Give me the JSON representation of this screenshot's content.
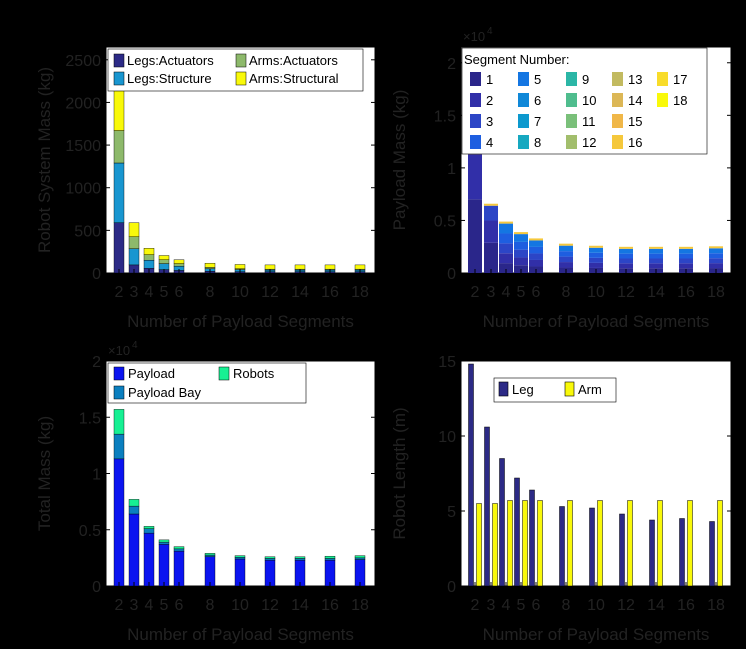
{
  "chart_data": [
    {
      "type": "bar",
      "stacked": true,
      "xlabel": "Number of Payload Segments",
      "ylabel": "Robot System Mass (kg)",
      "x": [
        2,
        3,
        4,
        5,
        6,
        8,
        10,
        12,
        14,
        16,
        18
      ],
      "ylim": [
        0,
        2650
      ],
      "yticks": [
        0,
        500,
        1000,
        1500,
        2000,
        2500
      ],
      "yticklabels": [
        "0",
        "500",
        "1000",
        "1500",
        "2000",
        "2500"
      ],
      "legend": {
        "position": "top",
        "columns": 2
      },
      "series": [
        {
          "name": "Legs:Actuators",
          "color": "#2c2a86",
          "values": [
            590,
            95,
            55,
            40,
            30,
            20,
            15,
            15,
            15,
            15,
            15
          ]
        },
        {
          "name": "Legs:Structure",
          "color": "#1996d0",
          "values": [
            700,
            190,
            95,
            70,
            50,
            30,
            25,
            20,
            20,
            20,
            20
          ]
        },
        {
          "name": "Arms:Actuators",
          "color": "#8db96b",
          "values": [
            380,
            140,
            65,
            45,
            30,
            15,
            10,
            10,
            10,
            10,
            10
          ]
        },
        {
          "name": "Arms:Structural",
          "color": "#f9f90a",
          "values": [
            490,
            165,
            75,
            50,
            45,
            50,
            50,
            50,
            50,
            50,
            50
          ]
        }
      ]
    },
    {
      "type": "bar",
      "stacked": true,
      "xlabel": "Number of Payload Segments",
      "ylabel": "Payload Mass (kg)",
      "exponent_label": "×10",
      "exponent_power": "4",
      "x": [
        2,
        3,
        4,
        5,
        6,
        8,
        10,
        12,
        14,
        16,
        18
      ],
      "ylim": [
        0,
        2.15
      ],
      "yticks": [
        0,
        0.5,
        1,
        1.5,
        2
      ],
      "yticklabels": [
        "0",
        "0.5",
        "1",
        "1.5",
        "2"
      ],
      "totals": [
        1.13,
        0.64,
        0.47,
        0.37,
        0.31,
        0.26,
        0.24,
        0.23,
        0.23,
        0.23,
        0.235
      ],
      "legend": {
        "position": "top",
        "title": "Segment Number:",
        "columns": 5
      },
      "series_names": [
        "1",
        "2",
        "3",
        "4",
        "5",
        "6",
        "7",
        "8",
        "9",
        "10",
        "11",
        "12",
        "13",
        "14",
        "15",
        "16",
        "17",
        "18"
      ],
      "series_colors": [
        "#2a268a",
        "#312fa8",
        "#2c45c6",
        "#1e5ee0",
        "#1476e2",
        "#1088d8",
        "#0c99ce",
        "#16a8c0",
        "#2bb6a6",
        "#4fbd8e",
        "#7ac07a",
        "#a2be6c",
        "#c2ba60",
        "#dcb756",
        "#f0b748",
        "#f5c83c",
        "#f8dc2a",
        "#f9f90a"
      ]
    },
    {
      "type": "bar",
      "stacked": true,
      "xlabel": "Number of Payload Segments",
      "ylabel": "Total Mass (kg)",
      "exponent_label": "×10",
      "exponent_power": "4",
      "x": [
        2,
        3,
        4,
        5,
        6,
        8,
        10,
        12,
        14,
        16,
        18
      ],
      "ylim": [
        0,
        2
      ],
      "yticks": [
        0,
        0.5,
        1,
        1.5,
        2
      ],
      "yticklabels": [
        "0",
        "0.5",
        "1",
        "1.5",
        "2"
      ],
      "legend": {
        "position": "top-left",
        "columns": 2
      },
      "series": [
        {
          "name": "Payload",
          "color": "#0b14f0",
          "values": [
            1.13,
            0.64,
            0.47,
            0.37,
            0.31,
            0.26,
            0.24,
            0.23,
            0.23,
            0.23,
            0.235
          ]
        },
        {
          "name": "Payload Bay",
          "color": "#0b7fbf",
          "values": [
            0.22,
            0.07,
            0.04,
            0.02,
            0.02,
            0.015,
            0.015,
            0.015,
            0.015,
            0.015,
            0.015
          ]
        },
        {
          "name": "Robots",
          "color": "#17f093",
          "values": [
            0.22,
            0.06,
            0.02,
            0.02,
            0.02,
            0.015,
            0.015,
            0.015,
            0.015,
            0.02,
            0.02
          ]
        }
      ]
    },
    {
      "type": "bar",
      "grouped": true,
      "xlabel": "Number of Payload Segments",
      "ylabel": "Robot Length (m)",
      "x": [
        2,
        3,
        4,
        5,
        6,
        8,
        10,
        12,
        14,
        16,
        18
      ],
      "ylim": [
        0,
        15
      ],
      "yticks": [
        0,
        5,
        10,
        15
      ],
      "yticklabels": [
        "0",
        "5",
        "10",
        "15"
      ],
      "legend": {
        "position": "top-left",
        "columns": 2
      },
      "series": [
        {
          "name": "Leg",
          "color": "#2c2a86",
          "values": [
            14.8,
            10.6,
            8.5,
            7.2,
            6.4,
            5.3,
            5.2,
            4.8,
            4.4,
            4.5,
            4.3
          ]
        },
        {
          "name": "Arm",
          "color": "#f9f90a",
          "values": [
            5.5,
            5.5,
            5.7,
            5.7,
            5.7,
            5.7,
            5.7,
            5.7,
            5.7,
            5.7,
            5.7
          ]
        }
      ]
    }
  ]
}
